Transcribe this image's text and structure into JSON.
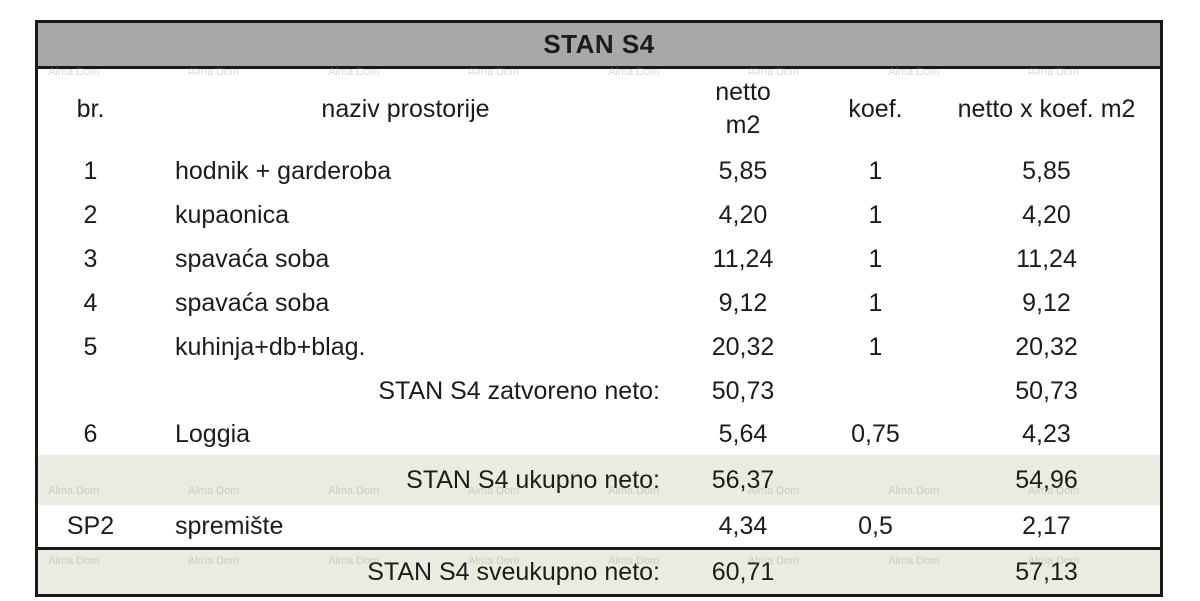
{
  "title": "STAN S4",
  "watermark": "Alma Dom",
  "header": {
    "br": "br.",
    "naziv": "naziv prostorije",
    "netto_line1": "netto",
    "netto_line2": "m2",
    "koef": "koef.",
    "nxk": "netto x koef. m2"
  },
  "rows": [
    {
      "br": "1",
      "naziv": "hodnik + garderoba",
      "netto": "5,85",
      "koef": "1",
      "nxk": "5,85"
    },
    {
      "br": "2",
      "naziv": "kupaonica",
      "netto": "4,20",
      "koef": "1",
      "nxk": "4,20"
    },
    {
      "br": "3",
      "naziv": "spavaća soba",
      "netto": "11,24",
      "koef": "1",
      "nxk": "11,24"
    },
    {
      "br": "4",
      "naziv": "spavaća soba",
      "netto": "9,12",
      "koef": "1",
      "nxk": "9,12"
    },
    {
      "br": "5",
      "naziv": "kuhinja+db+blag.",
      "netto": "20,32",
      "koef": "1",
      "nxk": "20,32"
    },
    {
      "label": "STAN S4 zatvoreno neto:",
      "netto": "50,73",
      "koef": "",
      "nxk": "50,73"
    },
    {
      "br": "6",
      "naziv": "Loggia",
      "netto": "5,64",
      "koef": "0,75",
      "nxk": "4,23"
    },
    {
      "label": "STAN S4 ukupno neto:",
      "netto": "56,37",
      "koef": "",
      "nxk": "54,96"
    },
    {
      "br": "SP2",
      "naziv": "spremište",
      "netto": "4,34",
      "koef": "0,5",
      "nxk": "2,17"
    },
    {
      "label": "STAN S4 sveukupno neto:",
      "netto": "60,71",
      "koef": "",
      "nxk": "57,13"
    }
  ],
  "colors": {
    "header_bg": "#a8a8a8",
    "highlight_bg": "#ebebe2",
    "border": "#1a1a1a",
    "text": "#1c1c1c"
  }
}
